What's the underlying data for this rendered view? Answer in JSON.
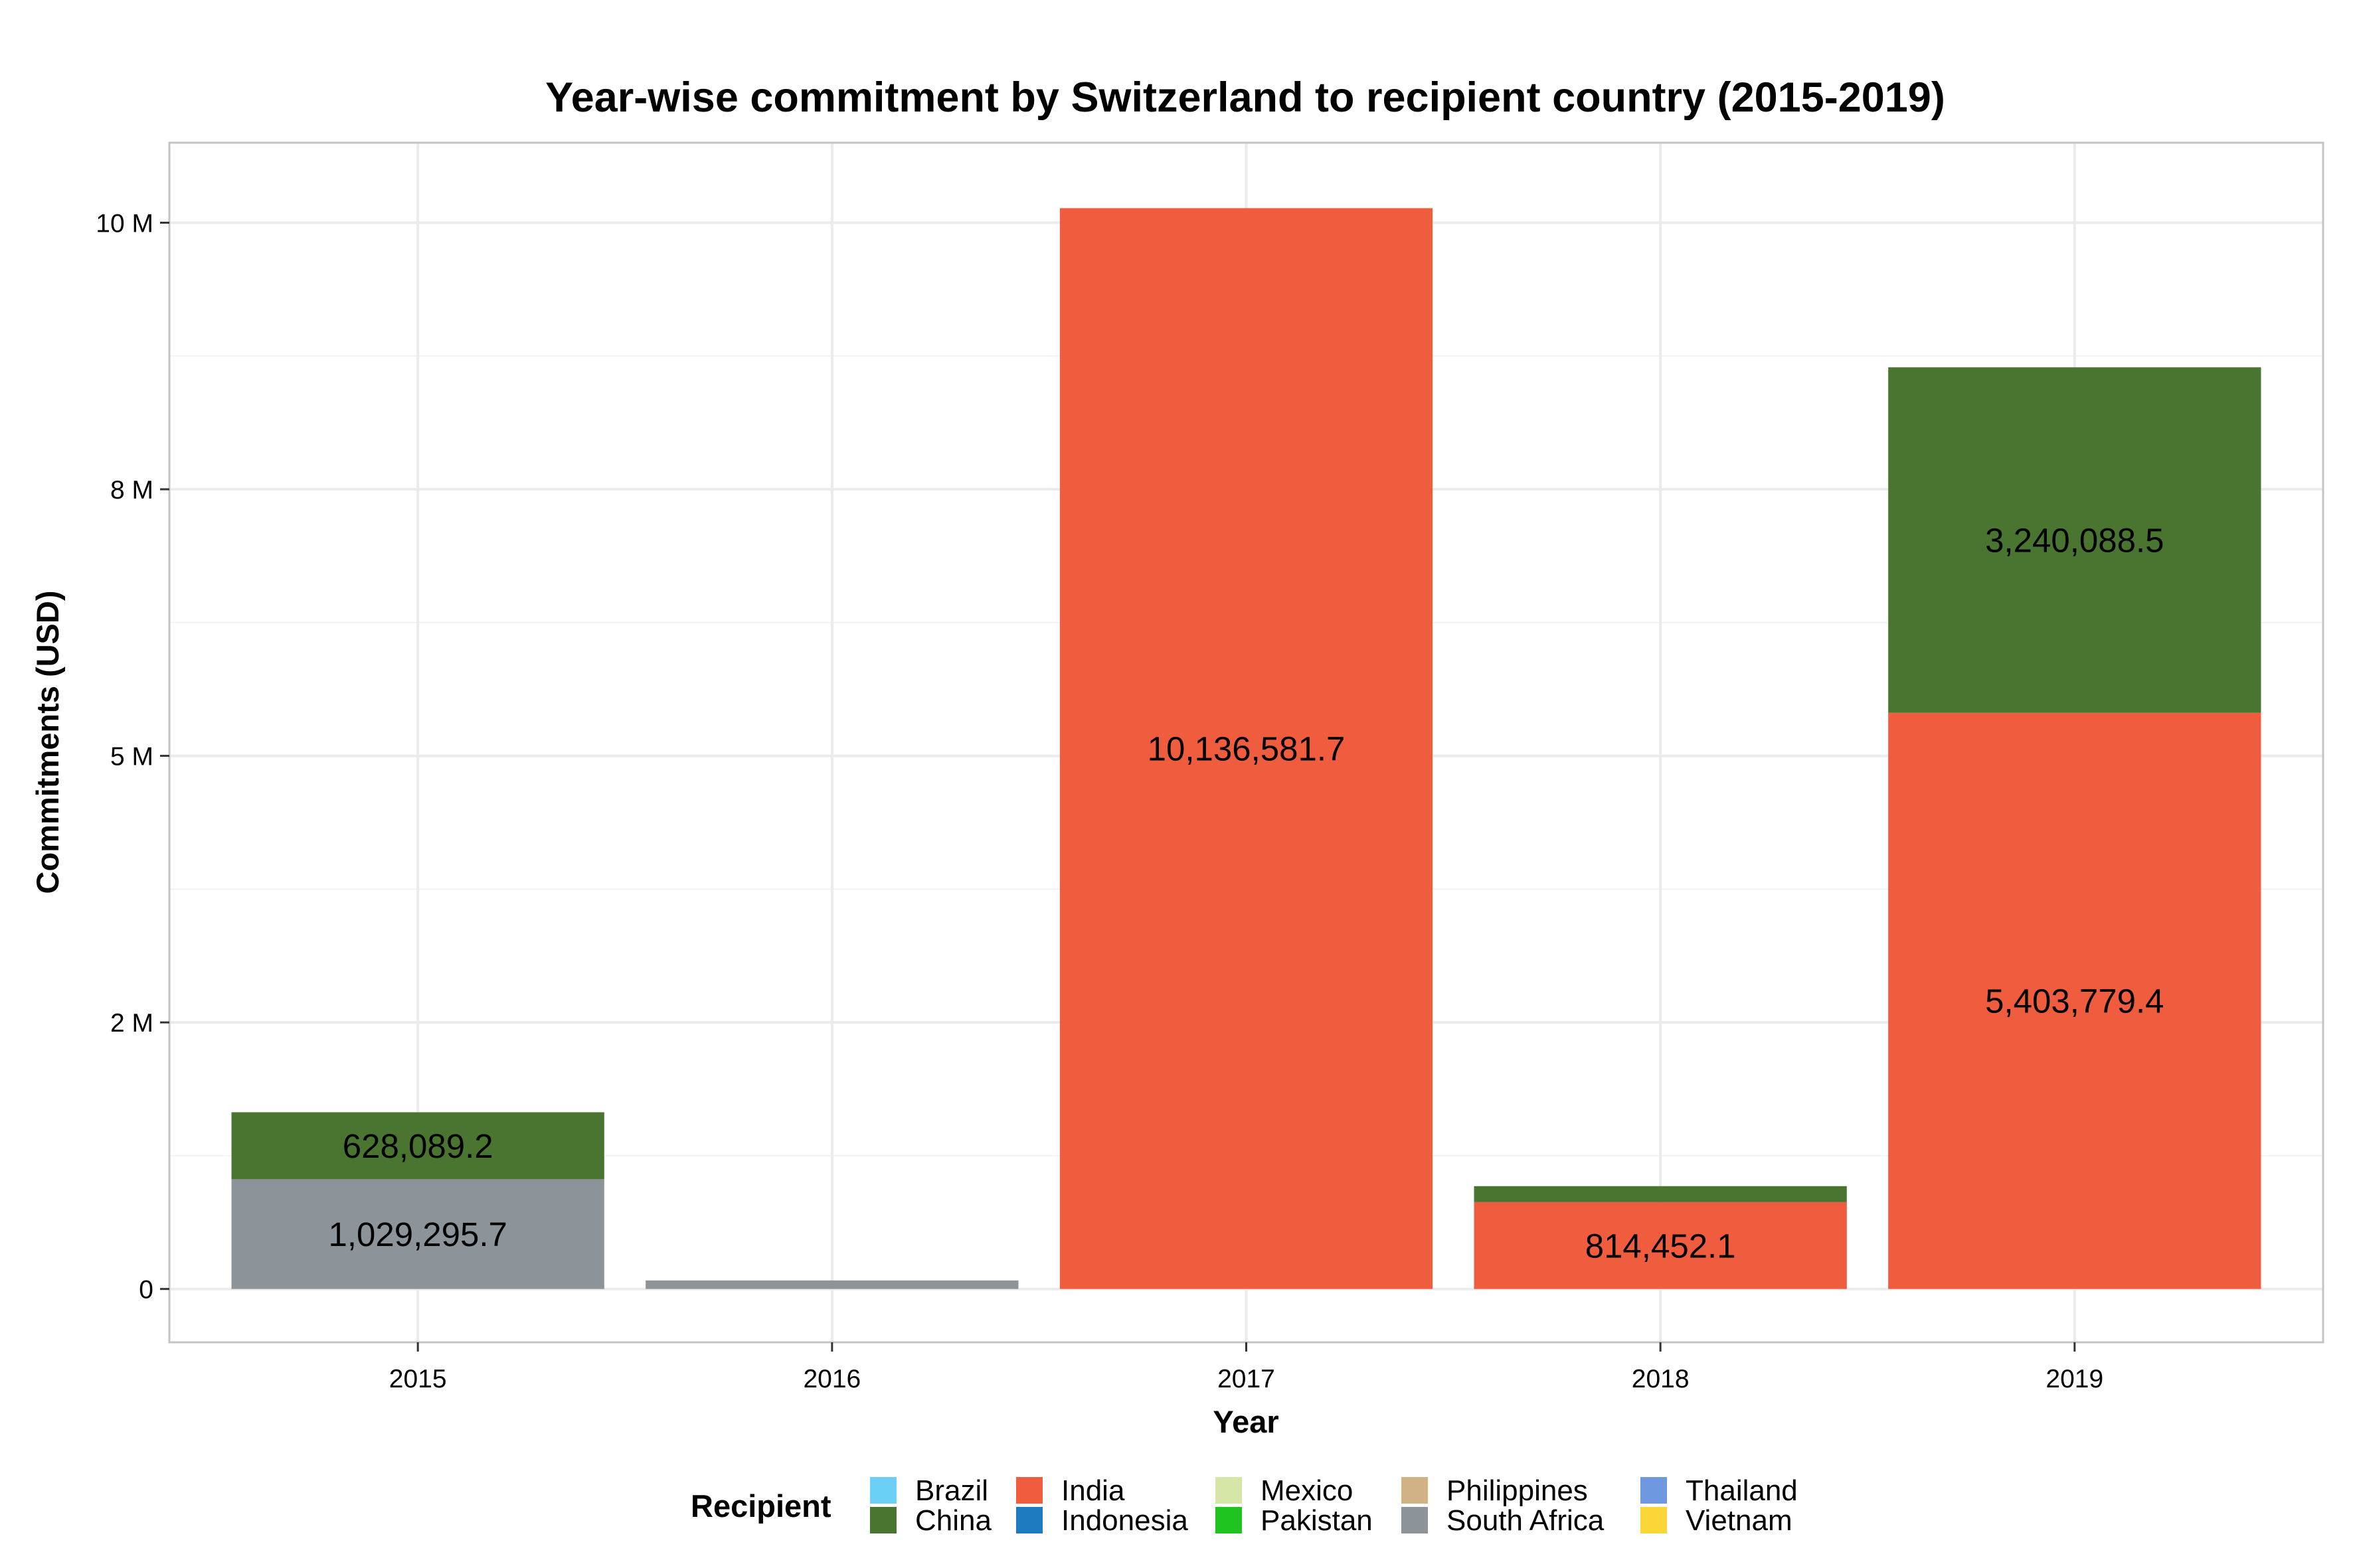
{
  "chart_data": {
    "type": "bar",
    "stacked": true,
    "title": "Year-wise commitment by Switzerland to recipient country (2015-2019)",
    "xlabel": "Year",
    "ylabel": "Commitments (USD)",
    "categories": [
      "2015",
      "2016",
      "2017",
      "2018",
      "2019"
    ],
    "ylim": [
      -500000,
      10750000
    ],
    "yticks": [
      {
        "value": 0,
        "label": "0"
      },
      {
        "value": 2500000,
        "label": "2 M"
      },
      {
        "value": 5000000,
        "label": "5 M"
      },
      {
        "value": 7500000,
        "label": "8 M"
      },
      {
        "value": 10000000,
        "label": "10 M"
      }
    ],
    "grid": true,
    "legend_title": "Recipient",
    "legend_position": "bottom",
    "legend_items": [
      {
        "name": "Brazil",
        "color": "#6ccff6"
      },
      {
        "name": "China",
        "color": "#4a7530"
      },
      {
        "name": "India",
        "color": "#f05d3e"
      },
      {
        "name": "Indonesia",
        "color": "#1f7bbf"
      },
      {
        "name": "Mexico",
        "color": "#d6e6a6"
      },
      {
        "name": "Pakistan",
        "color": "#20c420"
      },
      {
        "name": "Philippines",
        "color": "#d1b285"
      },
      {
        "name": "South Africa",
        "color": "#8c9399"
      },
      {
        "name": "Thailand",
        "color": "#6e98e0"
      },
      {
        "name": "Vietnam",
        "color": "#fad637"
      }
    ],
    "series": [
      {
        "name": "South Africa",
        "color": "#8c9399",
        "values": [
          1029295.7,
          80000,
          0,
          0,
          0
        ],
        "labels": [
          "1,029,295.7",
          "",
          "",
          "",
          ""
        ]
      },
      {
        "name": "India",
        "color": "#f05d3e",
        "values": [
          0,
          0,
          10136581.7,
          814452.1,
          5403779.4
        ],
        "labels": [
          "",
          "",
          "10,136,581.7",
          "814,452.1",
          "5,403,779.4"
        ]
      },
      {
        "name": "China",
        "color": "#4a7530",
        "values": [
          628089.2,
          0,
          0,
          150000,
          3240088.5
        ],
        "labels": [
          "628,089.2",
          "",
          "",
          "",
          "3,240,088.5"
        ]
      }
    ]
  }
}
